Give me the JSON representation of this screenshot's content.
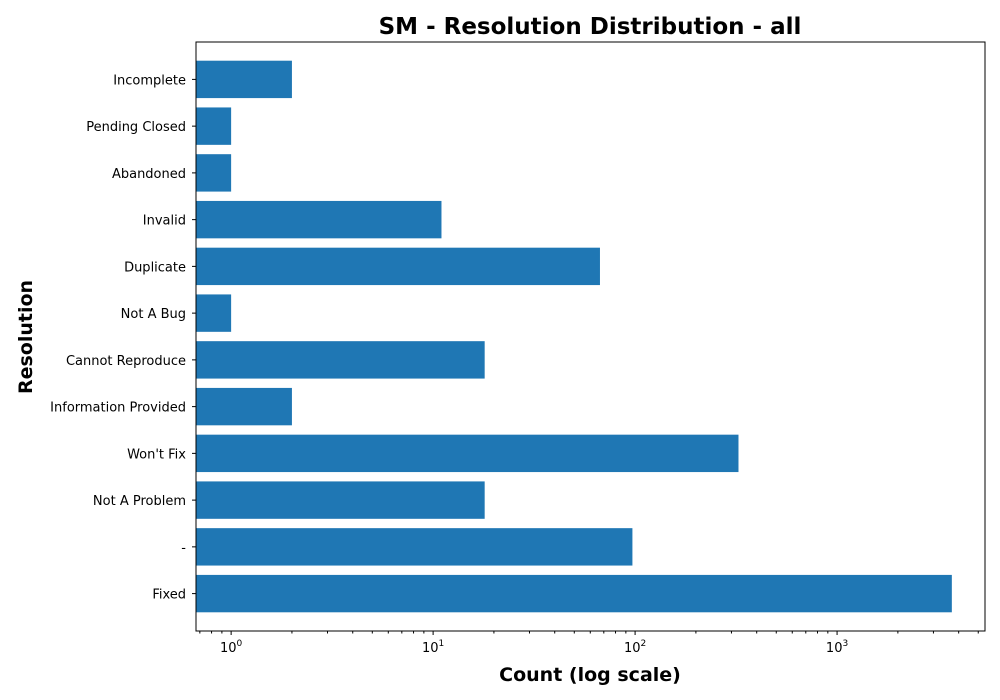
{
  "chart_data": {
    "type": "bar",
    "orientation": "horizontal",
    "title": "SM - Resolution Distribution - all",
    "xlabel": "Count (log scale)",
    "ylabel": "Resolution",
    "xscale": "log",
    "xlim": [
      0.67,
      5400
    ],
    "x_ticks": [
      {
        "value": 1,
        "base": "10",
        "exp": "0"
      },
      {
        "value": 10,
        "base": "10",
        "exp": "1"
      },
      {
        "value": 100,
        "base": "10",
        "exp": "2"
      },
      {
        "value": 1000,
        "base": "10",
        "exp": "3"
      }
    ],
    "categories": [
      "Fixed",
      "-",
      "Not A Problem",
      "Won't Fix",
      "Information Provided",
      "Cannot Reproduce",
      "Not A Bug",
      "Duplicate",
      "Invalid",
      "Abandoned",
      "Pending Closed",
      "Incomplete"
    ],
    "values": [
      3700,
      97,
      18,
      325,
      2,
      18,
      1,
      67,
      11,
      1,
      1,
      2
    ],
    "bar_color": "#1f77b4",
    "grid": false
  }
}
